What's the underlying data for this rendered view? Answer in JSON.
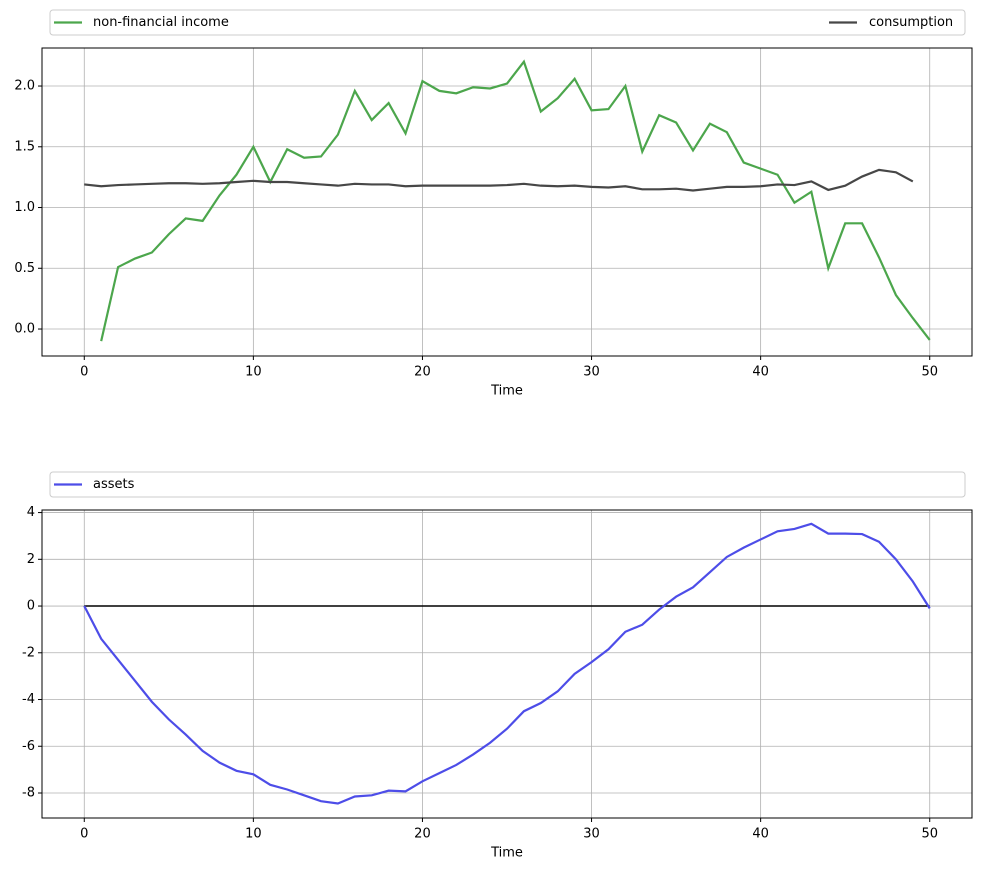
{
  "chart_data": [
    {
      "type": "line",
      "xlabel": "Time",
      "grid": true,
      "legend": "above",
      "x": [
        0,
        1,
        2,
        3,
        4,
        5,
        6,
        7,
        8,
        9,
        10,
        11,
        12,
        13,
        14,
        15,
        16,
        17,
        18,
        19,
        20,
        21,
        22,
        23,
        24,
        25,
        26,
        27,
        28,
        29,
        30,
        31,
        32,
        33,
        34,
        35,
        36,
        37,
        38,
        39,
        40,
        41,
        42,
        43,
        44,
        45,
        46,
        47,
        48,
        49,
        50
      ],
      "series": [
        {
          "name": "non-financial income",
          "color": "#4ca64c",
          "values": [
            null,
            -0.1,
            0.51,
            0.58,
            0.63,
            0.78,
            0.91,
            0.89,
            1.1,
            1.27,
            1.5,
            1.21,
            1.48,
            1.41,
            1.42,
            1.6,
            1.96,
            1.72,
            1.86,
            1.61,
            2.04,
            1.96,
            1.94,
            1.99,
            1.98,
            2.02,
            2.2,
            1.79,
            1.9,
            2.06,
            1.8,
            1.81,
            2.0,
            1.46,
            1.76,
            1.7,
            1.47,
            1.69,
            1.62,
            1.37,
            1.32,
            1.27,
            1.04,
            1.13,
            0.5,
            0.87,
            0.87,
            0.59,
            0.28,
            0.09,
            -0.09
          ]
        },
        {
          "name": "consumption",
          "color": "#474747",
          "values": [
            1.19,
            1.175,
            1.185,
            1.19,
            1.195,
            1.2,
            1.2,
            1.195,
            1.2,
            1.21,
            1.22,
            1.21,
            1.21,
            1.2,
            1.19,
            1.18,
            1.195,
            1.19,
            1.19,
            1.175,
            1.18,
            1.18,
            1.18,
            1.18,
            1.18,
            1.185,
            1.195,
            1.18,
            1.175,
            1.18,
            1.17,
            1.165,
            1.175,
            1.15,
            1.15,
            1.155,
            1.14,
            1.155,
            1.17,
            1.17,
            1.175,
            1.19,
            1.185,
            1.215,
            1.145,
            1.18,
            1.255,
            1.31,
            1.29,
            1.215,
            null
          ]
        }
      ],
      "xlim": [
        -2.5,
        52.5
      ],
      "xticks": [
        0,
        10,
        20,
        30,
        40,
        50
      ],
      "ylim": [
        -0.222,
        2.313
      ],
      "yticks": [
        {
          "value": 0,
          "label": "0.0"
        },
        {
          "value": 0.5,
          "label": "0.5"
        },
        {
          "value": 1,
          "label": "1.0"
        },
        {
          "value": 1.5,
          "label": "1.5"
        },
        {
          "value": 2,
          "label": "2.0"
        }
      ]
    },
    {
      "type": "line",
      "xlabel": "Time",
      "grid": true,
      "legend": "above",
      "x": [
        0,
        1,
        2,
        3,
        4,
        5,
        6,
        7,
        8,
        9,
        10,
        11,
        12,
        13,
        14,
        15,
        16,
        17,
        18,
        19,
        20,
        21,
        22,
        23,
        24,
        25,
        26,
        27,
        28,
        29,
        30,
        31,
        32,
        33,
        34,
        35,
        36,
        37,
        38,
        39,
        40,
        41,
        42,
        43,
        44,
        45,
        46,
        47,
        48,
        49,
        50
      ],
      "series": [
        {
          "name": "assets",
          "color": "#4d4de8",
          "values": [
            0,
            -1.4,
            -2.3,
            -3.2,
            -4.1,
            -4.85,
            -5.5,
            -6.2,
            -6.7,
            -7.05,
            -7.2,
            -7.65,
            -7.85,
            -8.1,
            -8.35,
            -8.45,
            -8.15,
            -8.1,
            -7.9,
            -7.93,
            -7.5,
            -7.15,
            -6.8,
            -6.35,
            -5.85,
            -5.25,
            -4.5,
            -4.15,
            -3.65,
            -2.9,
            -2.4,
            -1.85,
            -1.1,
            -0.8,
            -0.15,
            0.4,
            0.8,
            1.45,
            2.1,
            2.5,
            2.85,
            3.2,
            3.3,
            3.52,
            3.1,
            3.1,
            3.08,
            2.75,
            2.0,
            1.05,
            -0.1
          ]
        }
      ],
      "hlines": [
        {
          "y": 0,
          "x": [
            0,
            50
          ],
          "color": "#000000"
        }
      ],
      "xlim": [
        -2.5,
        52.5
      ],
      "xticks": [
        0,
        10,
        20,
        30,
        40,
        50
      ],
      "ylim": [
        -9.07,
        4.11
      ],
      "yticks": [
        -8,
        -6,
        -4,
        -2,
        0,
        2,
        4
      ]
    }
  ]
}
